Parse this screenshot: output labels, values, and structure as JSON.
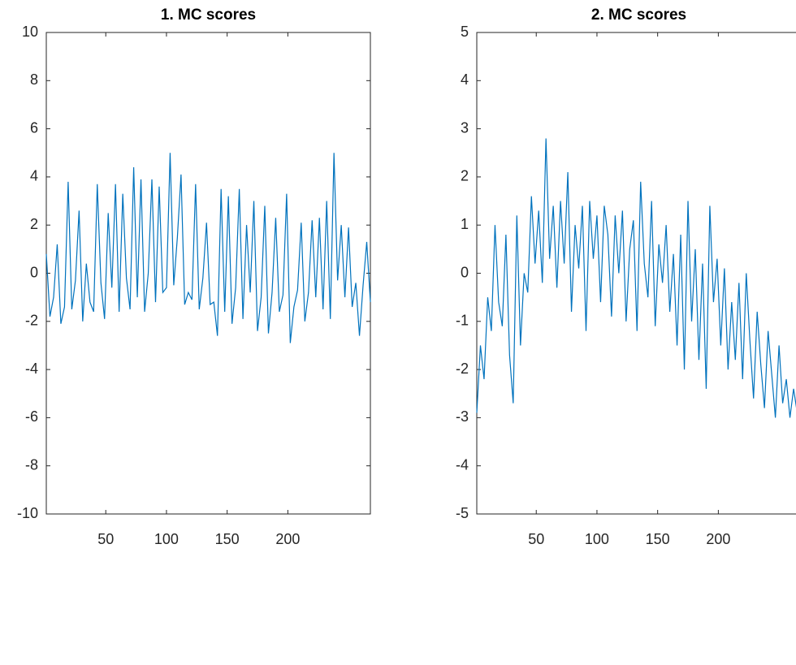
{
  "chart_data": [
    {
      "type": "line",
      "title": "1. MC scores",
      "color": "#0072bd",
      "x": [
        1,
        4,
        7,
        10,
        13,
        16,
        19,
        22,
        25,
        28,
        31,
        34,
        37,
        40,
        43,
        46,
        49,
        52,
        55,
        58,
        61,
        64,
        67,
        70,
        73,
        76,
        79,
        82,
        85,
        88,
        91,
        94,
        97,
        100,
        103,
        106,
        109,
        112,
        115,
        118,
        121,
        124,
        127,
        130,
        133,
        136,
        139,
        142,
        145,
        148,
        151,
        154,
        157,
        160,
        163,
        166,
        169,
        172,
        175,
        178,
        181,
        184,
        187,
        190,
        193,
        196,
        199,
        202,
        205,
        208,
        211,
        214,
        217,
        220,
        223,
        226,
        229,
        232,
        235,
        238,
        241,
        244,
        247,
        250,
        253,
        256,
        259,
        262,
        265,
        268
      ],
      "values": [
        0.8,
        -1.8,
        -1.0,
        1.2,
        -2.1,
        -1.4,
        3.8,
        -1.5,
        -0.3,
        2.6,
        -2.0,
        0.4,
        -1.2,
        -1.6,
        3.7,
        -0.4,
        -1.9,
        2.5,
        -0.6,
        3.7,
        -1.6,
        3.3,
        -0.2,
        -1.5,
        4.4,
        -1.0,
        3.9,
        -1.6,
        0.0,
        3.9,
        -1.2,
        3.6,
        -0.8,
        -0.6,
        5.0,
        -0.5,
        1.5,
        4.1,
        -1.3,
        -0.8,
        -1.1,
        3.7,
        -1.5,
        -0.2,
        2.1,
        -1.3,
        -1.2,
        -2.6,
        3.5,
        -1.6,
        3.2,
        -2.1,
        -0.6,
        3.5,
        -1.9,
        2.0,
        -0.8,
        3.0,
        -2.4,
        -1.0,
        2.8,
        -2.5,
        -0.8,
        2.3,
        -1.6,
        -0.9,
        3.3,
        -2.9,
        -1.4,
        -0.7,
        2.1,
        -2.0,
        -0.8,
        2.2,
        -1.0,
        2.3,
        -1.5,
        3.0,
        -1.9,
        5.0,
        -0.3,
        2.0,
        -1.0,
        1.9,
        -1.4,
        -0.4,
        -2.6,
        -0.5,
        1.3,
        -1.2
      ],
      "xlim": [
        1,
        268
      ],
      "xticks": [
        50,
        100,
        150,
        200
      ],
      "ylim": [
        -10,
        10
      ],
      "yticks": [
        -10,
        -8,
        -6,
        -4,
        -2,
        0,
        2,
        4,
        6,
        8,
        10
      ]
    },
    {
      "type": "line",
      "title": "2. MC scores",
      "color": "#0072bd",
      "x": [
        1,
        4,
        7,
        10,
        13,
        16,
        19,
        22,
        25,
        28,
        31,
        34,
        37,
        40,
        43,
        46,
        49,
        52,
        55,
        58,
        61,
        64,
        67,
        70,
        73,
        76,
        79,
        82,
        85,
        88,
        91,
        94,
        97,
        100,
        103,
        106,
        109,
        112,
        115,
        118,
        121,
        124,
        127,
        130,
        133,
        136,
        139,
        142,
        145,
        148,
        151,
        154,
        157,
        160,
        163,
        166,
        169,
        172,
        175,
        178,
        181,
        184,
        187,
        190,
        193,
        196,
        199,
        202,
        205,
        208,
        211,
        214,
        217,
        220,
        223,
        226,
        229,
        232,
        235,
        238,
        241,
        244,
        247,
        250,
        253,
        256,
        259,
        262,
        265,
        268
      ],
      "values": [
        -2.9,
        -1.5,
        -2.2,
        -0.5,
        -1.2,
        1.0,
        -0.6,
        -1.1,
        0.8,
        -1.7,
        -2.7,
        1.2,
        -1.5,
        0.0,
        -0.4,
        1.6,
        0.2,
        1.3,
        -0.2,
        2.8,
        0.3,
        1.4,
        -0.3,
        1.5,
        0.2,
        2.1,
        -0.8,
        1.0,
        0.1,
        1.4,
        -1.2,
        1.5,
        0.3,
        1.2,
        -0.6,
        1.4,
        0.8,
        -0.9,
        1.2,
        0.0,
        1.3,
        -1.0,
        0.5,
        1.1,
        -1.2,
        1.9,
        0.2,
        -0.5,
        1.5,
        -1.1,
        0.6,
        -0.2,
        1.0,
        -0.8,
        0.4,
        -1.5,
        0.8,
        -2.0,
        1.5,
        -1.0,
        0.5,
        -1.8,
        0.2,
        -2.4,
        1.4,
        -0.6,
        0.3,
        -1.5,
        0.1,
        -2.0,
        -0.6,
        -1.8,
        -0.2,
        -2.2,
        0.0,
        -1.4,
        -2.6,
        -0.8,
        -1.9,
        -2.8,
        -1.2,
        -2.1,
        -3.0,
        -1.5,
        -2.7,
        -2.2,
        -3.0,
        -2.4,
        -2.9,
        -2.6
      ],
      "xlim": [
        1,
        268
      ],
      "xticks": [
        50,
        100,
        150,
        200
      ],
      "ylim": [
        -5,
        5
      ],
      "yticks": [
        -5,
        -4,
        -3,
        -2,
        -1,
        0,
        1,
        2,
        3,
        4,
        5
      ]
    }
  ]
}
